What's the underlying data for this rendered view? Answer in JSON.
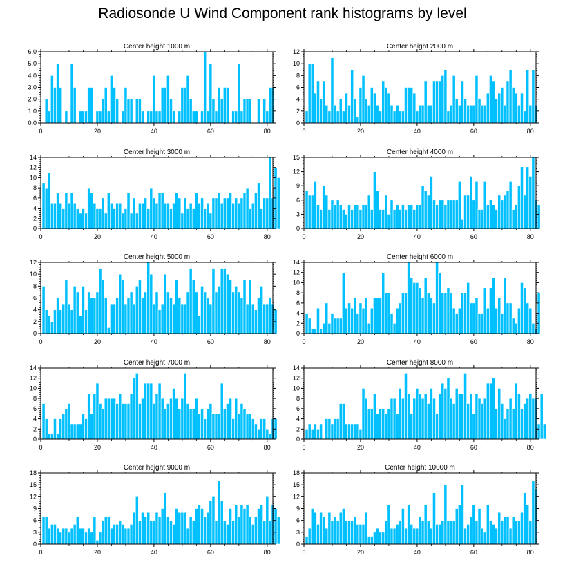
{
  "title": "Radiosonde U Wind Component rank histograms by level",
  "colors": {
    "bar": "#00c0ff",
    "bar_outline": "#ffffff",
    "axis": "#000000"
  },
  "chart_data": [
    {
      "type": "bar",
      "title": "Center height 1000 m",
      "ylim": [
        0,
        6
      ],
      "yticks": [
        "0.0",
        "1.0",
        "2.0",
        "3.0",
        "4.0",
        "5.0",
        "6.0"
      ],
      "xlim": [
        0,
        82
      ],
      "xticks": [
        "0",
        "20",
        "40",
        "60",
        "80"
      ],
      "values": [
        0,
        2,
        1,
        4,
        3,
        5,
        3,
        0,
        1,
        0,
        5,
        3,
        0,
        1,
        1,
        1,
        3,
        3,
        0,
        1,
        1,
        2,
        3,
        1,
        4,
        3,
        2,
        0,
        1,
        3,
        2,
        2,
        0,
        2,
        2,
        1,
        0,
        1,
        1,
        4,
        1,
        1,
        3,
        3,
        4,
        2,
        1,
        0,
        1,
        3,
        3,
        4,
        2,
        1,
        1,
        0,
        1,
        6,
        1,
        5,
        2,
        1,
        3,
        2,
        3,
        3,
        0,
        1,
        1,
        5,
        1,
        2,
        2,
        2,
        0,
        0,
        2,
        0,
        2,
        1,
        3,
        3
      ]
    },
    {
      "type": "bar",
      "title": "Center height 2000 m",
      "ylim": [
        0,
        12
      ],
      "yticks": [
        "0",
        "2",
        "4",
        "6",
        "8",
        "10",
        "12"
      ],
      "xlim": [
        0,
        82
      ],
      "xticks": [
        "0",
        "20",
        "40",
        "60",
        "80"
      ],
      "values": [
        2,
        10,
        10,
        5,
        7,
        4,
        7,
        3,
        2,
        11,
        3,
        2,
        4,
        2,
        5,
        3,
        9,
        4,
        1,
        6,
        8,
        4,
        3,
        6,
        5,
        3,
        2,
        7,
        6,
        5,
        3,
        2,
        3,
        2,
        2,
        6,
        6,
        6,
        5,
        2,
        3,
        3,
        7,
        3,
        3,
        7,
        7,
        7,
        8,
        9,
        2,
        3,
        8,
        4,
        3,
        7,
        4,
        3,
        3,
        3,
        8,
        4,
        3,
        3,
        5,
        8,
        7,
        4,
        5,
        6,
        3,
        7,
        9,
        6,
        5,
        3,
        5,
        2,
        9,
        3,
        9,
        3
      ]
    },
    {
      "type": "bar",
      "title": "Center height 3000 m",
      "ylim": [
        0,
        14
      ],
      "yticks": [
        "0",
        "2",
        "4",
        "6",
        "8",
        "10",
        "12",
        "14"
      ],
      "xlim": [
        0,
        82
      ],
      "xticks": [
        "0",
        "20",
        "40",
        "60",
        "80"
      ],
      "values": [
        9,
        8,
        11,
        5,
        5,
        7,
        5,
        4,
        7,
        5,
        7,
        5,
        4,
        3,
        4,
        3,
        8,
        7,
        5,
        4,
        4,
        6,
        3,
        7,
        5,
        4,
        5,
        5,
        3,
        4,
        7,
        3,
        6,
        3,
        5,
        5,
        6,
        4,
        8,
        6,
        5,
        7,
        7,
        5,
        5,
        4,
        5,
        7,
        6,
        3,
        6,
        4,
        5,
        4,
        7,
        5,
        6,
        4,
        5,
        3,
        6,
        6,
        7,
        5,
        6,
        6,
        7,
        5,
        6,
        5,
        6,
        7,
        8,
        4,
        5,
        7,
        9,
        4,
        6,
        6,
        14,
        6,
        12,
        10
      ]
    },
    {
      "type": "bar",
      "title": "Center height 4000 m",
      "ylim": [
        0,
        15
      ],
      "yticks": [
        "0",
        "3",
        "6",
        "9",
        "12",
        "15"
      ],
      "xlim": [
        0,
        82
      ],
      "xticks": [
        "0",
        "20",
        "40",
        "60",
        "80"
      ],
      "values": [
        8,
        7,
        7,
        10,
        5,
        4,
        9,
        7,
        4,
        6,
        5,
        6,
        5,
        4,
        3,
        5,
        4,
        5,
        5,
        4,
        5,
        5,
        7,
        4,
        12,
        8,
        4,
        4,
        7,
        3,
        6,
        4,
        5,
        4,
        5,
        4,
        5,
        5,
        4,
        5,
        5,
        9,
        8,
        7,
        11,
        6,
        5,
        6,
        6,
        5,
        6,
        6,
        6,
        6,
        10,
        2,
        7,
        7,
        11,
        6,
        10,
        4,
        4,
        10,
        5,
        6,
        5,
        4,
        7,
        6,
        7,
        8,
        10,
        4,
        5,
        9,
        13,
        7,
        13,
        11,
        15,
        6,
        5
      ]
    },
    {
      "type": "bar",
      "title": "Center height 5000 m",
      "ylim": [
        0,
        12
      ],
      "yticks": [
        "0",
        "2",
        "4",
        "6",
        "8",
        "10",
        "12"
      ],
      "xlim": [
        0,
        82
      ],
      "xticks": [
        "0",
        "20",
        "40",
        "60",
        "80"
      ],
      "values": [
        8,
        4,
        3,
        2,
        4,
        6,
        4,
        5,
        9,
        5,
        4,
        8,
        7,
        3,
        8,
        4,
        7,
        6,
        6,
        7,
        11,
        9,
        6,
        1,
        5,
        5,
        6,
        10,
        9,
        5,
        6,
        7,
        5,
        8,
        9,
        6,
        7,
        12,
        10,
        5,
        7,
        4,
        5,
        10,
        7,
        6,
        5,
        9,
        6,
        5,
        5,
        7,
        11,
        9,
        7,
        3,
        8,
        7,
        6,
        5,
        11,
        7,
        8,
        11,
        11,
        10,
        9,
        7,
        8,
        7,
        6,
        9,
        5,
        9,
        5,
        4,
        6,
        8,
        5,
        5,
        6,
        5,
        4
      ]
    },
    {
      "type": "bar",
      "title": "Center height 6000 m",
      "ylim": [
        0,
        14
      ],
      "yticks": [
        "0",
        "2",
        "4",
        "6",
        "8",
        "10",
        "12",
        "14"
      ],
      "xlim": [
        0,
        82
      ],
      "xticks": [
        "0",
        "20",
        "40",
        "60",
        "80"
      ],
      "values": [
        4,
        3,
        1,
        1,
        5,
        1,
        2,
        6,
        2,
        4,
        3,
        3,
        3,
        12,
        5,
        6,
        5,
        7,
        4,
        6,
        5,
        7,
        2,
        5,
        7,
        7,
        7,
        12,
        8,
        8,
        4,
        2,
        5,
        6,
        8,
        8,
        14,
        11,
        10,
        10,
        9,
        7,
        11,
        8,
        7,
        6,
        14,
        12,
        8,
        8,
        9,
        8,
        5,
        4,
        5,
        8,
        8,
        10,
        6,
        6,
        7,
        4,
        4,
        9,
        5,
        9,
        11,
        5,
        7,
        4,
        11,
        6,
        6,
        3,
        2,
        5,
        10,
        9,
        6,
        5,
        2,
        1,
        8
      ]
    },
    {
      "type": "bar",
      "title": "Center height 7000 m",
      "ylim": [
        0,
        14
      ],
      "yticks": [
        "0",
        "2",
        "4",
        "6",
        "8",
        "10",
        "12",
        "14"
      ],
      "xlim": [
        0,
        82
      ],
      "xticks": [
        "0",
        "20",
        "40",
        "60",
        "80"
      ],
      "values": [
        7,
        4,
        1,
        1,
        4,
        1,
        4,
        5,
        6,
        7,
        3,
        3,
        3,
        3,
        5,
        4,
        9,
        5,
        9,
        11,
        7,
        6,
        8,
        8,
        8,
        8,
        7,
        9,
        7,
        7,
        7,
        9,
        12,
        13,
        7,
        8,
        11,
        11,
        11,
        7,
        9,
        11,
        8,
        6,
        7,
        8,
        10,
        8,
        6,
        8,
        13,
        7,
        6,
        6,
        8,
        5,
        6,
        4,
        6,
        7,
        5,
        5,
        5,
        11,
        6,
        7,
        8,
        4,
        8,
        5,
        7,
        6,
        5,
        5,
        4,
        3,
        2,
        4,
        4,
        2,
        1,
        4,
        4
      ]
    },
    {
      "type": "bar",
      "title": "Center height 8000 m",
      "ylim": [
        0,
        14
      ],
      "yticks": [
        "0",
        "2",
        "4",
        "6",
        "8",
        "10",
        "12",
        "14"
      ],
      "xlim": [
        0,
        82
      ],
      "xticks": [
        "0",
        "20",
        "40",
        "60",
        "80"
      ],
      "values": [
        2,
        3,
        2,
        3,
        2,
        3,
        0,
        4,
        4,
        3,
        4,
        4,
        7,
        7,
        3,
        3,
        3,
        3,
        3,
        2,
        10,
        8,
        6,
        6,
        9,
        5,
        6,
        6,
        5,
        6,
        8,
        8,
        5,
        10,
        8,
        13,
        9,
        5,
        8,
        10,
        9,
        8,
        9,
        7,
        10,
        8,
        5,
        9,
        11,
        10,
        12,
        8,
        7,
        10,
        9,
        9,
        13,
        7,
        9,
        5,
        9,
        8,
        7,
        8,
        11,
        11,
        12,
        6,
        10,
        7,
        4,
        6,
        8,
        6,
        11,
        9,
        6,
        7,
        8,
        9,
        8,
        8,
        3,
        9,
        3
      ]
    },
    {
      "type": "bar",
      "title": "Center height 9000 m",
      "ylim": [
        0,
        18
      ],
      "yticks": [
        "0",
        "3",
        "6",
        "9",
        "12",
        "15",
        "18"
      ],
      "xlim": [
        0,
        82
      ],
      "xticks": [
        "0",
        "20",
        "40",
        "60",
        "80"
      ],
      "values": [
        7,
        7,
        4,
        5,
        5,
        4,
        3,
        4,
        4,
        3,
        4,
        5,
        7,
        4,
        4,
        3,
        4,
        3,
        7,
        1,
        3,
        6,
        7,
        7,
        4,
        5,
        5,
        6,
        5,
        4,
        4,
        5,
        8,
        12,
        6,
        8,
        7,
        8,
        6,
        6,
        8,
        7,
        9,
        13,
        7,
        6,
        5,
        9,
        8,
        8,
        8,
        4,
        7,
        6,
        9,
        10,
        9,
        7,
        8,
        11,
        12,
        6,
        16,
        11,
        6,
        5,
        9,
        6,
        10,
        7,
        10,
        9,
        10,
        7,
        5,
        7,
        9,
        10,
        6,
        12,
        6,
        10,
        9,
        7
      ]
    },
    {
      "type": "bar",
      "title": "Center height 10000 m",
      "ylim": [
        0,
        18
      ],
      "yticks": [
        "0",
        "3",
        "6",
        "9",
        "12",
        "15",
        "18"
      ],
      "xlim": [
        0,
        82
      ],
      "xticks": [
        "0",
        "20",
        "40",
        "60",
        "80"
      ],
      "values": [
        2,
        4,
        9,
        8,
        5,
        8,
        7,
        4,
        8,
        6,
        7,
        6,
        8,
        9,
        6,
        6,
        6,
        7,
        5,
        5,
        5,
        8,
        2,
        2,
        3,
        4,
        3,
        3,
        6,
        10,
        4,
        4,
        5,
        6,
        9,
        4,
        10,
        5,
        4,
        4,
        7,
        6,
        10,
        6,
        4,
        13,
        5,
        5,
        6,
        15,
        6,
        6,
        6,
        9,
        10,
        15,
        4,
        5,
        7,
        10,
        6,
        9,
        4,
        3,
        10,
        6,
        5,
        4,
        8,
        6,
        7,
        7,
        4,
        7,
        6,
        6,
        8,
        13,
        10,
        6,
        16,
        14
      ]
    }
  ]
}
